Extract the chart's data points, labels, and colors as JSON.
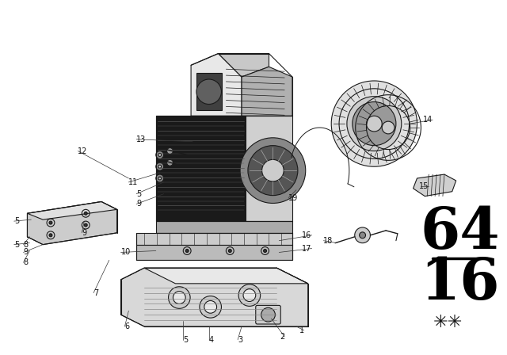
{
  "bg_color": "#f5f5f5",
  "fig_width": 6.4,
  "fig_height": 4.48,
  "dpi": 100,
  "catalog_top": "64",
  "catalog_bottom": "16",
  "label_fontsize": 7,
  "ec": "#1a1a1a",
  "lw": 0.8
}
